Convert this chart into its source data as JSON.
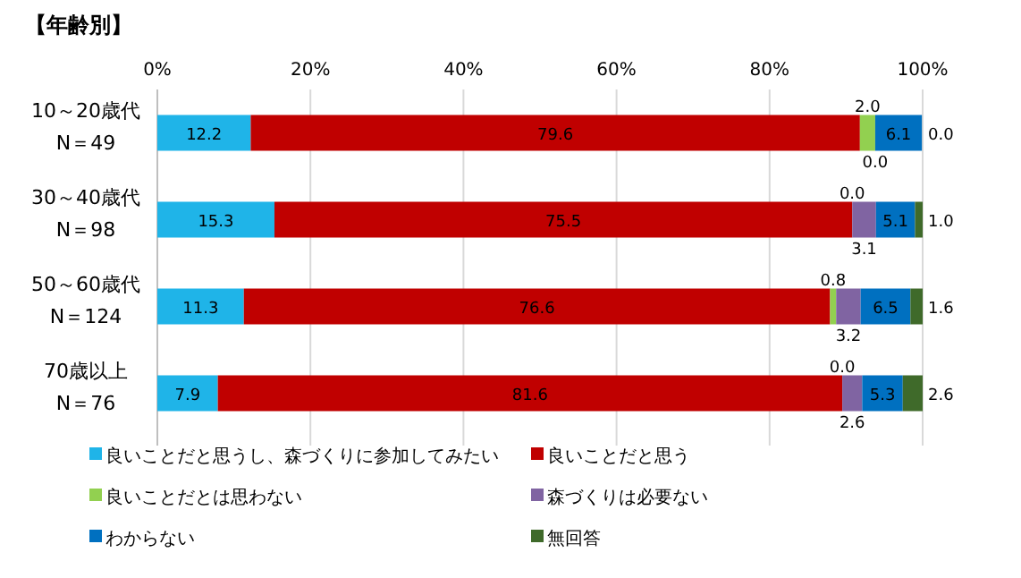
{
  "chart_data": {
    "type": "bar",
    "orientation": "horizontal",
    "stacked": true,
    "title": "【年齢別】",
    "categories": [
      "10～20歳代\nN＝49",
      "30～40歳代\nN＝98",
      "50～60歳代\nN＝124",
      "70歳以上\nN＝76"
    ],
    "series": [
      {
        "name": "良いことだと思うし、森づくりに参加してみたい",
        "color": "#1fb4e8",
        "values": [
          12.2,
          15.3,
          11.3,
          7.9
        ]
      },
      {
        "name": "良いことだと思う",
        "color": "#c00000",
        "values": [
          79.6,
          75.5,
          76.6,
          81.6
        ]
      },
      {
        "name": "良いことだとは思わない",
        "color": "#92d050",
        "values": [
          2.0,
          0.0,
          0.8,
          0.0
        ]
      },
      {
        "name": "森づくりは必要ない",
        "color": "#8064a2",
        "values": [
          0.0,
          3.1,
          3.2,
          2.6
        ]
      },
      {
        "name": "わからない",
        "color": "#0070c0",
        "values": [
          6.1,
          5.1,
          6.5,
          5.3
        ]
      },
      {
        "name": "無回答",
        "color": "#3f6a2a",
        "values": [
          0.0,
          1.0,
          1.6,
          2.6
        ]
      }
    ],
    "xlim": [
      0,
      100
    ],
    "xticks": [
      {
        "value": 0,
        "label": "0%"
      },
      {
        "value": 20,
        "label": "20%"
      },
      {
        "value": 40,
        "label": "40%"
      },
      {
        "value": 60,
        "label": "60%"
      },
      {
        "value": 80,
        "label": "80%"
      },
      {
        "value": 100,
        "label": "100%"
      }
    ],
    "value_labels": [
      [
        "12.2",
        "15.3",
        "11.3",
        "7.9"
      ],
      [
        "79.6",
        "75.5",
        "76.6",
        "81.6"
      ],
      [
        "2.0",
        "0.0",
        "0.8",
        "0.0"
      ],
      [
        "0.0",
        "3.1",
        "3.2",
        "2.6"
      ],
      [
        "6.1",
        "5.1",
        "6.5",
        "5.3"
      ],
      [
        "0.0",
        "1.0",
        "1.6",
        "2.6"
      ]
    ],
    "grid": "x",
    "legend": "bottom"
  }
}
